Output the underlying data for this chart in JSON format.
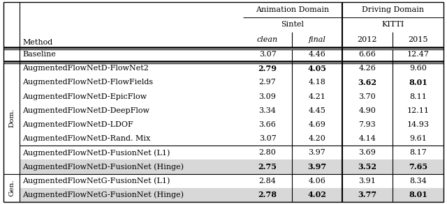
{
  "figsize": [
    6.4,
    2.93
  ],
  "dpi": 100,
  "shade_color": "#d8d8d8",
  "rows_data": [
    {
      "label": "",
      "method": "Baseline",
      "clean": "3.07",
      "final": "4.46",
      "k2012": "6.66",
      "k2015": "12.47",
      "bold": [
        0,
        0,
        0,
        0
      ],
      "is_baseline": true,
      "side": ""
    },
    {
      "label": "Dom.",
      "method": "AugmentedFlowNetD-FlowNet2",
      "clean": "2.79",
      "final": "4.05",
      "k2012": "4.26",
      "k2015": "9.60",
      "bold": [
        1,
        1,
        0,
        0
      ],
      "is_baseline": false,
      "side": "Dom."
    },
    {
      "label": "",
      "method": "AugmentedFlowNetD-FlowFields",
      "clean": "2.97",
      "final": "4.18",
      "k2012": "3.62",
      "k2015": "8.01",
      "bold": [
        0,
        0,
        1,
        1
      ],
      "is_baseline": false,
      "side": ""
    },
    {
      "label": "",
      "method": "AugmentedFlowNetD-EpicFlow",
      "clean": "3.09",
      "final": "4.21",
      "k2012": "3.70",
      "k2015": "8.11",
      "bold": [
        0,
        0,
        0,
        0
      ],
      "is_baseline": false,
      "side": ""
    },
    {
      "label": "",
      "method": "AugmentedFlowNetD-DeepFlow",
      "clean": "3.34",
      "final": "4.45",
      "k2012": "4.90",
      "k2015": "12.11",
      "bold": [
        0,
        0,
        0,
        0
      ],
      "is_baseline": false,
      "side": ""
    },
    {
      "label": "",
      "method": "AugmentedFlowNetD-LDOF",
      "clean": "3.66",
      "final": "4.69",
      "k2012": "7.93",
      "k2015": "14.93",
      "bold": [
        0,
        0,
        0,
        0
      ],
      "is_baseline": false,
      "side": ""
    },
    {
      "label": "",
      "method": "AugmentedFlowNetD-Rand. Mix",
      "clean": "3.07",
      "final": "4.20",
      "k2012": "4.14",
      "k2015": "9.61",
      "bold": [
        0,
        0,
        0,
        0
      ],
      "is_baseline": false,
      "side": ""
    },
    {
      "label": "",
      "method": "AugmentedFlowNetD-FusionNet (L1)",
      "clean": "2.80",
      "final": "3.97",
      "k2012": "3.69",
      "k2015": "8.17",
      "bold": [
        0,
        0,
        0,
        0
      ],
      "is_baseline": false,
      "side": ""
    },
    {
      "label": "",
      "method": "AugmentedFlowNetD-FusionNet (Hinge)",
      "clean": "2.75",
      "final": "3.97",
      "k2012": "3.52",
      "k2015": "7.65",
      "bold": [
        1,
        1,
        1,
        1
      ],
      "is_baseline": false,
      "side": "",
      "shaded": true
    },
    {
      "label": "Gen.",
      "method": "AugmentedFlowNetG-FusionNet (L1)",
      "clean": "2.84",
      "final": "4.06",
      "k2012": "3.91",
      "k2015": "8.34",
      "bold": [
        0,
        0,
        0,
        0
      ],
      "is_baseline": false,
      "side": "Gen."
    },
    {
      "label": "",
      "method": "AugmentedFlowNetG-FusionNet (Hinge)",
      "clean": "2.78",
      "final": "4.02",
      "k2012": "3.77",
      "k2015": "8.01",
      "bold": [
        1,
        1,
        1,
        1
      ],
      "is_baseline": false,
      "side": "",
      "shaded": true
    }
  ],
  "header": {
    "anim_domain": "Animation Domain",
    "sintel": "Sintel",
    "drive_domain": "Driving Domain",
    "kitti": "KITTI",
    "method": "Method",
    "clean": "clean",
    "final": "final",
    "y2012": "2012",
    "y2015": "2015"
  },
  "sep_after_rows": [
    6,
    8
  ],
  "dom_rows": [
    1,
    8
  ],
  "gen_rows": [
    9,
    10
  ]
}
